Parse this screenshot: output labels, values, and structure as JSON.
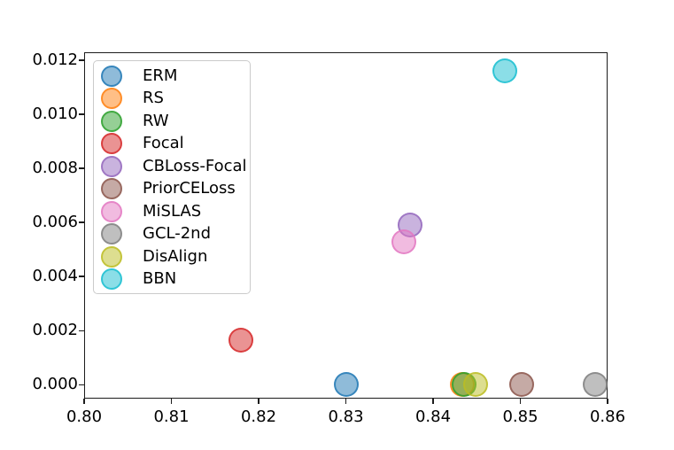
{
  "figure": {
    "background": "#ffffff",
    "axis_color": "#1c1c1c",
    "legend_border_color": "#cbcbcb",
    "legend_background": "rgba(255,255,255,0.8)"
  },
  "chart_data": {
    "type": "scatter",
    "title": "",
    "xlabel": "",
    "ylabel": "",
    "grid": false,
    "xlim": [
      0.8,
      0.86
    ],
    "ylim": [
      -0.00051,
      0.01229
    ],
    "xticks": {
      "values": [
        0.8,
        0.81,
        0.82,
        0.83,
        0.84,
        0.85,
        0.86
      ],
      "labels": [
        "0.80",
        "0.81",
        "0.82",
        "0.83",
        "0.84",
        "0.85",
        "0.86"
      ]
    },
    "yticks": {
      "values": [
        0.0,
        0.002,
        0.004,
        0.006,
        0.008,
        0.01,
        0.012
      ],
      "labels": [
        "0.000",
        "0.002",
        "0.004",
        "0.006",
        "0.008",
        "0.010",
        "0.012"
      ]
    },
    "legend_position": "upper left",
    "marker_fill_alpha": 0.5,
    "marker_edge_alpha": 0.78,
    "series": [
      {
        "name": "ERM",
        "color": "#1f77b4",
        "x": 0.8301,
        "y": 0.0
      },
      {
        "name": "RS",
        "color": "#ff7f0e",
        "x": 0.8434,
        "y": 0.0
      },
      {
        "name": "RW",
        "color": "#2ca02c",
        "x": 0.8436,
        "y": 0.0
      },
      {
        "name": "Focal",
        "color": "#d62728",
        "x": 0.818,
        "y": 0.00166
      },
      {
        "name": "CBLoss-Focal",
        "color": "#9467bd",
        "x": 0.8374,
        "y": 0.0059
      },
      {
        "name": "PriorCELoss",
        "color": "#8c564b",
        "x": 0.8502,
        "y": 0.0
      },
      {
        "name": "MiSLAS",
        "color": "#e377c2",
        "x": 0.8366,
        "y": 0.0053
      },
      {
        "name": "GCL-2nd",
        "color": "#7f7f7f",
        "x": 0.8586,
        "y": 0.0
      },
      {
        "name": "DisAlign",
        "color": "#bcbd22",
        "x": 0.8449,
        "y": 0.0
      },
      {
        "name": "BBN",
        "color": "#17becf",
        "x": 0.8482,
        "y": 0.0116
      }
    ]
  }
}
